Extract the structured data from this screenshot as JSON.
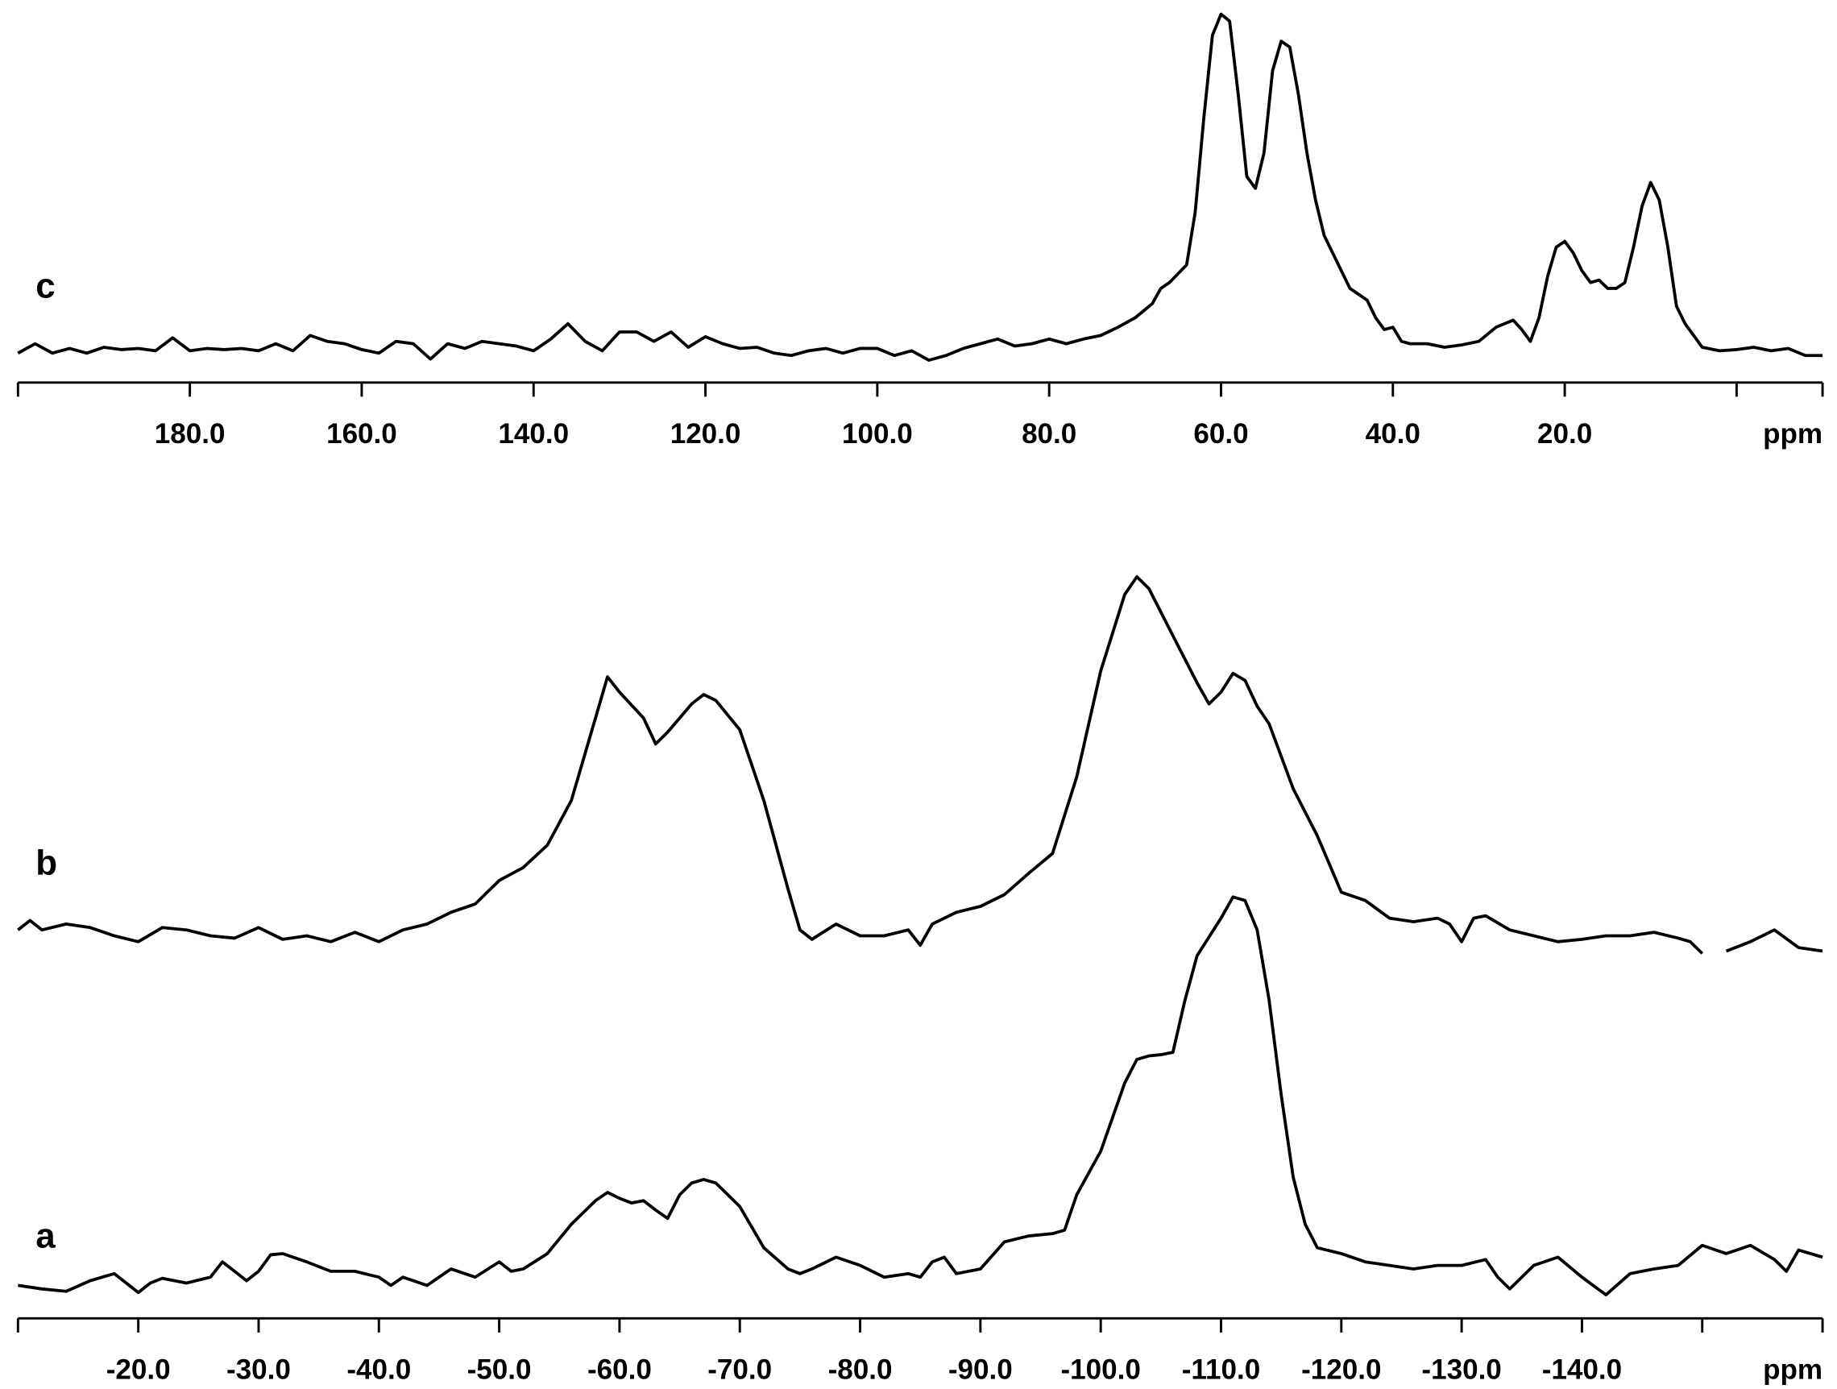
{
  "chart_data": [
    {
      "type": "line",
      "xlabel": "ppm",
      "xlim": [
        200,
        -10
      ],
      "ylim": [
        -25,
        295
      ],
      "xticks": [
        {
          "value": 180,
          "label": "180.0"
        },
        {
          "value": 160,
          "label": "160.0"
        },
        {
          "value": 140,
          "label": "140.0"
        },
        {
          "value": 120,
          "label": "120.0"
        },
        {
          "value": 100,
          "label": "100.0"
        },
        {
          "value": 80,
          "label": "80.0"
        },
        {
          "value": 60,
          "label": "60.0"
        },
        {
          "value": 40,
          "label": "40.0"
        },
        {
          "value": 20,
          "label": "20.0"
        }
      ],
      "xminorticks": [
        200,
        0,
        -10
      ],
      "series": [
        {
          "name": "c",
          "color": "#000000",
          "x": [
            200,
            198,
            196,
            194,
            192,
            190,
            188,
            186,
            184,
            182,
            180,
            178,
            176,
            174,
            172,
            170,
            168,
            166,
            164,
            162,
            160,
            158,
            156,
            154,
            152,
            150,
            148,
            146,
            144,
            142,
            140,
            138,
            136,
            134,
            132,
            130,
            128,
            126,
            124,
            122,
            120,
            118,
            116,
            114,
            112,
            110,
            108,
            106,
            104,
            102,
            100,
            98,
            96,
            94,
            92,
            90,
            88,
            86,
            84,
            82,
            80,
            78,
            76,
            74,
            72,
            70,
            68,
            67,
            66,
            64,
            63,
            62,
            61,
            60,
            59,
            58,
            57,
            56,
            55,
            54,
            53,
            52,
            51,
            50,
            49,
            48,
            46,
            45,
            44,
            43,
            42,
            41,
            40,
            39,
            38,
            36,
            34,
            32,
            30,
            28,
            26,
            25,
            24,
            23,
            22,
            21,
            20,
            19,
            18,
            17,
            16,
            15,
            14,
            13,
            12,
            11,
            10,
            9,
            8,
            7,
            6,
            5,
            4,
            2,
            0,
            -2,
            -4,
            -6,
            -8,
            -10
          ],
          "values": [
            0,
            8,
            0,
            4,
            0,
            5,
            3,
            4,
            2,
            13,
            2,
            4,
            3,
            4,
            2,
            8,
            2,
            15,
            10,
            8,
            3,
            0,
            10,
            8,
            -5,
            8,
            4,
            10,
            8,
            6,
            2,
            12,
            25,
            10,
            2,
            18,
            18,
            10,
            18,
            5,
            14,
            8,
            4,
            5,
            0,
            -2,
            2,
            4,
            0,
            4,
            4,
            -2,
            2,
            -6,
            -2,
            4,
            8,
            12,
            6,
            8,
            12,
            8,
            12,
            15,
            22,
            30,
            42,
            55,
            60,
            75,
            120,
            200,
            270,
            288,
            282,
            220,
            150,
            140,
            170,
            240,
            265,
            260,
            220,
            170,
            130,
            100,
            70,
            55,
            50,
            45,
            30,
            20,
            22,
            10,
            8,
            8,
            5,
            7,
            10,
            22,
            28,
            20,
            10,
            30,
            65,
            90,
            95,
            85,
            70,
            60,
            62,
            55,
            55,
            60,
            90,
            125,
            145,
            130,
            90,
            40,
            25,
            15,
            5,
            2,
            3,
            5,
            2,
            4,
            -2,
            -2
          ]
        }
      ]
    },
    {
      "type": "line",
      "xlabel": "ppm",
      "xlim": [
        -10,
        -160
      ],
      "ylim": [
        -25,
        340
      ],
      "xticks": [
        {
          "value": -20,
          "label": "-20.0"
        },
        {
          "value": -30,
          "label": "-30.0"
        },
        {
          "value": -40,
          "label": "-40.0"
        },
        {
          "value": -50,
          "label": "-50.0"
        },
        {
          "value": -60,
          "label": "-60.0"
        },
        {
          "value": -70,
          "label": "-70.0"
        },
        {
          "value": -80,
          "label": "-80.0"
        },
        {
          "value": -90,
          "label": "-90.0"
        },
        {
          "value": -100,
          "label": "-100.0"
        },
        {
          "value": -110,
          "label": "-110.0"
        },
        {
          "value": -120,
          "label": "-120.0"
        },
        {
          "value": -130,
          "label": "-130.0"
        },
        {
          "value": -140,
          "label": "-140.0"
        }
      ],
      "xminorticks": [
        -10,
        -150,
        -160
      ],
      "series": [
        {
          "name": "b",
          "color": "#000000",
          "x": [
            -10,
            -11,
            -12,
            -14,
            -16,
            -18,
            -20,
            -22,
            -24,
            -26,
            -28,
            -30,
            -32,
            -34,
            -36,
            -38,
            -40,
            -42,
            -44,
            -46,
            -48,
            -50,
            -52,
            -54,
            -56,
            -58,
            -59,
            -60,
            -62,
            -63,
            -64,
            -66,
            -67,
            -68,
            -70,
            -72,
            -74,
            -75,
            -76,
            -78,
            -80,
            -82,
            -84,
            -85,
            -86,
            -88,
            -90,
            -92,
            -94,
            -96,
            -98,
            -100,
            -102,
            -103,
            -104,
            -106,
            -108,
            -109,
            -110,
            -111,
            -112,
            -113,
            -114,
            -116,
            -118,
            -120,
            -122,
            -124,
            -126,
            -128,
            -129,
            -130,
            -131,
            -132,
            -134,
            -136,
            -138,
            -140,
            -142,
            -144,
            -146,
            -148,
            -149,
            -150,
            -151,
            -152,
            -154,
            -156,
            -158,
            -160
          ],
          "values": [
            5,
            13,
            5,
            10,
            7,
            0,
            -5,
            7,
            5,
            0,
            -2,
            7,
            -3,
            0,
            -5,
            3,
            -5,
            5,
            10,
            20,
            27,
            47,
            58,
            77,
            115,
            185,
            220,
            207,
            185,
            163,
            173,
            197,
            205,
            200,
            175,
            115,
            40,
            5,
            -3,
            10,
            0,
            0,
            5,
            -8,
            10,
            20,
            25,
            35,
            53,
            70,
            135,
            225,
            290,
            305,
            295,
            255,
            215,
            197,
            207,
            223,
            217,
            195,
            180,
            125,
            85,
            37,
            30,
            15,
            12,
            15,
            10,
            -5,
            15,
            17,
            5,
            0,
            -5,
            -3,
            0,
            0,
            3,
            -2,
            -5,
            -15,
            null,
            -13,
            -5,
            5,
            -10,
            -13
          ]
        },
        {
          "name": "a",
          "color": "#000000",
          "x": [
            -10,
            -12,
            -14,
            -16,
            -18,
            -19,
            -20,
            -21,
            -22,
            -24,
            -26,
            -27,
            -28,
            -29,
            -30,
            -31,
            -32,
            -34,
            -36,
            -38,
            -40,
            -41,
            -42,
            -44,
            -46,
            -48,
            -50,
            -51,
            -52,
            -54,
            -56,
            -58,
            -59,
            -60,
            -61,
            -62,
            -63,
            -64,
            -65,
            -66,
            -67,
            -68,
            -70,
            -72,
            -74,
            -75,
            -76,
            -78,
            -80,
            -82,
            -84,
            -85,
            -86,
            -87,
            -88,
            -90,
            -92,
            -94,
            -96,
            -97,
            -98,
            -100,
            -102,
            -103,
            -104,
            -105,
            -106,
            -107,
            -108,
            -110,
            -111,
            -112,
            -113,
            -114,
            -115,
            -116,
            -117,
            -118,
            -120,
            -122,
            -124,
            -126,
            -128,
            -130,
            -132,
            -133,
            -134,
            -136,
            -138,
            -140,
            -142,
            -144,
            -146,
            -148,
            -150,
            -152,
            -154,
            -156,
            -157,
            -158,
            -160
          ],
          "values": [
            3,
            0,
            -2,
            7,
            13,
            5,
            -3,
            5,
            9,
            5,
            10,
            23,
            15,
            7,
            15,
            29,
            30,
            23,
            15,
            15,
            10,
            3,
            10,
            3,
            17,
            10,
            23,
            15,
            17,
            30,
            55,
            75,
            82,
            77,
            73,
            75,
            67,
            60,
            80,
            90,
            93,
            90,
            70,
            35,
            17,
            13,
            17,
            27,
            20,
            10,
            13,
            10,
            23,
            27,
            13,
            17,
            40,
            45,
            47,
            50,
            80,
            117,
            175,
            195,
            198,
            199,
            201,
            245,
            283,
            315,
            333,
            330,
            305,
            245,
            165,
            95,
            55,
            35,
            30,
            23,
            20,
            17,
            20,
            20,
            25,
            10,
            0,
            20,
            27,
            10,
            -5,
            13,
            17,
            20,
            37,
            30,
            37,
            25,
            15,
            33,
            27
          ]
        }
      ]
    }
  ]
}
